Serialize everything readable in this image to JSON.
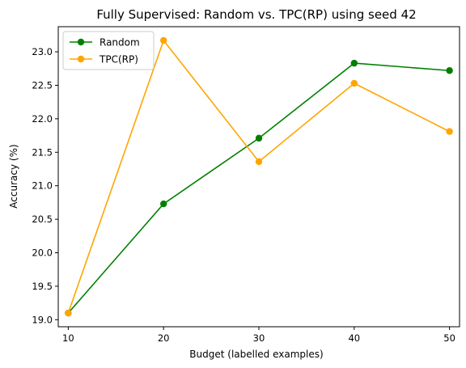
{
  "chart_data": {
    "type": "line",
    "title": "Fully Supervised: Random vs. TPC(RP) using seed 42",
    "xlabel": "Budget (labelled examples)",
    "ylabel": "Accuracy (%)",
    "x": [
      10,
      20,
      30,
      40,
      50
    ],
    "x_ticks": [
      "10",
      "20",
      "30",
      "40",
      "50"
    ],
    "y_ticks": [
      "19.0",
      "19.5",
      "20.0",
      "20.5",
      "21.0",
      "21.5",
      "22.0",
      "22.5",
      "23.0"
    ],
    "xlim": [
      8.95,
      51.05
    ],
    "ylim": [
      18.895,
      23.375
    ],
    "grid": false,
    "legend_position": "upper-left",
    "series": [
      {
        "name": "Random",
        "color": "#008000",
        "marker": "circle",
        "values": [
          19.1,
          20.73,
          21.71,
          22.83,
          22.72
        ]
      },
      {
        "name": "TPC(RP)",
        "color": "#FFA500",
        "marker": "circle",
        "values": [
          19.1,
          23.17,
          21.36,
          22.53,
          21.81
        ]
      }
    ]
  }
}
